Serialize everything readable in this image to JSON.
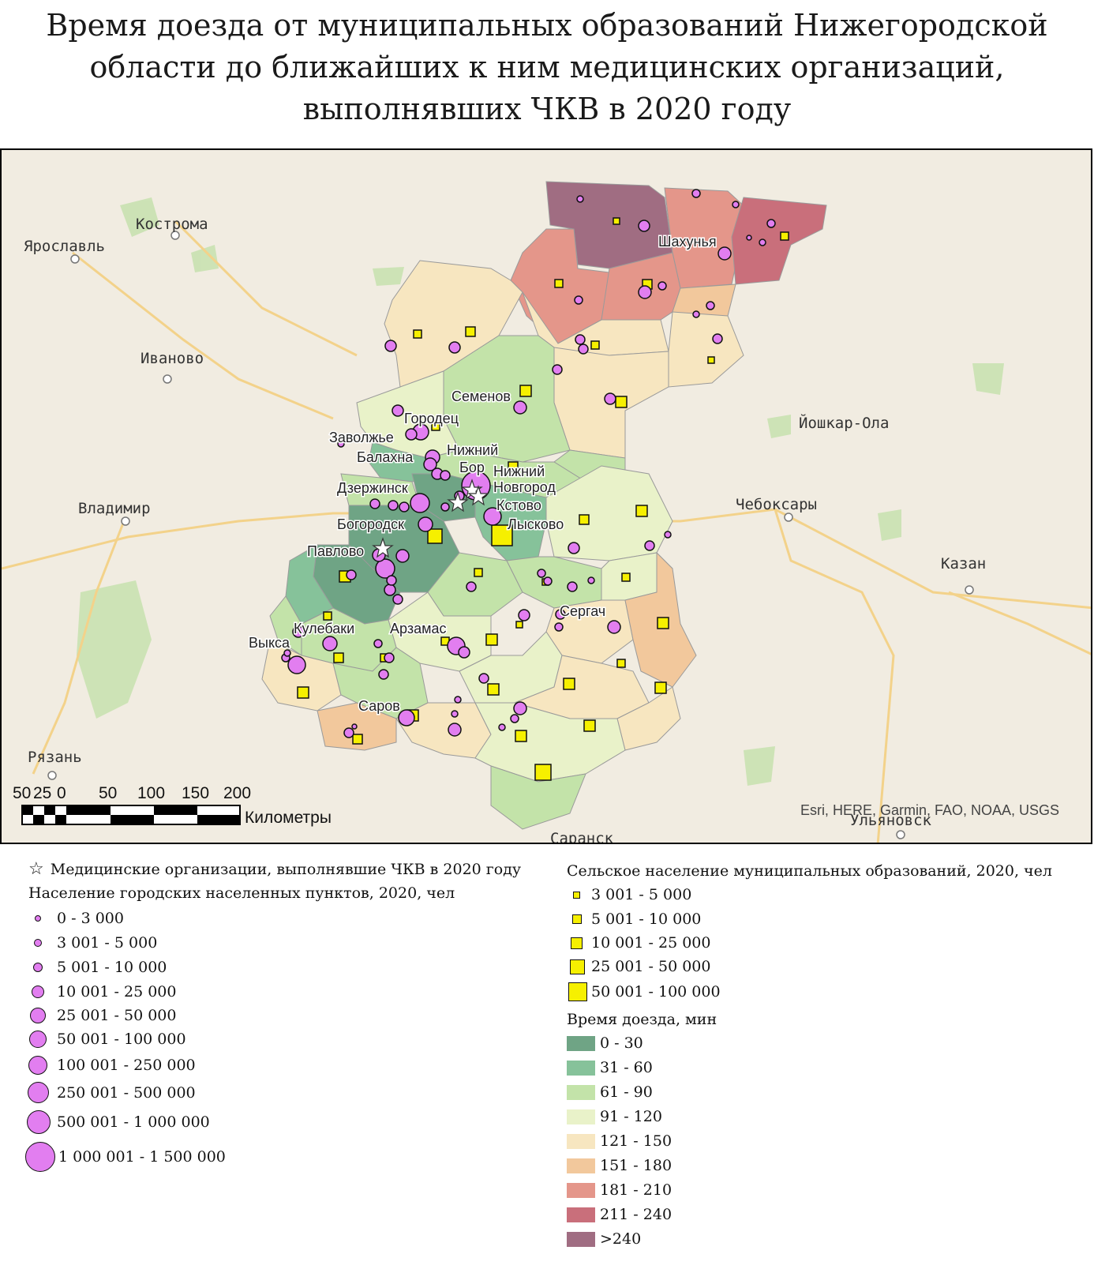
{
  "title": {
    "line1": "Время доезда от муниципальных образований Нижегородской",
    "line2": "области до ближайших к ним медицинских организаций,",
    "line3": "выполнявших ЧКВ в 2020 году"
  },
  "map": {
    "outside_cities": [
      {
        "name": "Кострома"
      },
      {
        "name": "Ярославль"
      },
      {
        "name": "Иваново"
      },
      {
        "name": "Владимир"
      },
      {
        "name": "Йошкар-Ола"
      },
      {
        "name": "Чебоксары"
      },
      {
        "name": "Казан"
      },
      {
        "name": "Рязань"
      },
      {
        "name": "Ульяновск"
      },
      {
        "name": "Саранск"
      }
    ],
    "region_cities": [
      {
        "name": "Шахунья"
      },
      {
        "name": "Семенов"
      },
      {
        "name": "Городец"
      },
      {
        "name": "Заволжье"
      },
      {
        "name": "Балахна"
      },
      {
        "name": "Нижний"
      },
      {
        "name": "Бор"
      },
      {
        "name": "Нижний"
      },
      {
        "name": "Новгород"
      },
      {
        "name": "Дзержинск"
      },
      {
        "name": "Кстово"
      },
      {
        "name": "Богородск"
      },
      {
        "name": "Лысково"
      },
      {
        "name": "Павлово"
      },
      {
        "name": "Сергач"
      },
      {
        "name": "Кулебаки"
      },
      {
        "name": "Арзамас"
      },
      {
        "name": "Выкса"
      },
      {
        "name": "Саров"
      }
    ],
    "scale": {
      "ticks": [
        "50",
        "25",
        "0",
        "50",
        "100",
        "150",
        "200"
      ],
      "unit": "Километры"
    },
    "attribution": "Esri, HERE, Garmin, FAO, NOAA, USGS"
  },
  "legend": {
    "pci_label": "Медицинские организации, выполнявшие ЧКВ в 2020 году",
    "urban_title": "Население городских населенных пунктов, 2020, чел",
    "urban_classes": [
      "0 - 3 000",
      "3 001 - 5 000",
      "5 001 - 10 000",
      "10 001 - 25 000",
      "25 001 - 50 000",
      "50 001 - 100 000",
      "100 001 - 250 000",
      "250 001 - 500 000",
      "500 001 - 1 000 000",
      "1 000 001 - 1 500 000"
    ],
    "rural_title": "Сельское население муниципальных образований, 2020, чел",
    "rural_classes": [
      "3 001 - 5 000",
      "5 001 - 10 000",
      "10 001 - 25 000",
      "25 001 - 50 000",
      "50 001 - 100 000"
    ],
    "time_title": "Время доезда, мин",
    "time_classes": [
      {
        "label": "0 - 30",
        "color": "#6fa485"
      },
      {
        "label": "31 - 60",
        "color": "#86c29a"
      },
      {
        "label": "61 - 90",
        "color": "#c3e3a9"
      },
      {
        "label": "91 - 120",
        "color": "#e9f2c9"
      },
      {
        "label": "121 - 150",
        "color": "#f7e6c0"
      },
      {
        "label": "151 - 180",
        "color": "#f2c89c"
      },
      {
        "label": "181 - 210",
        "color": "#e4968a"
      },
      {
        "label": "211 - 240",
        "color": "#c96f7b"
      },
      {
        "label": ">240",
        "color": "#a06d82"
      }
    ],
    "colors": {
      "urban_fill": "#e27ef0",
      "rural_fill": "#f6f000"
    }
  }
}
